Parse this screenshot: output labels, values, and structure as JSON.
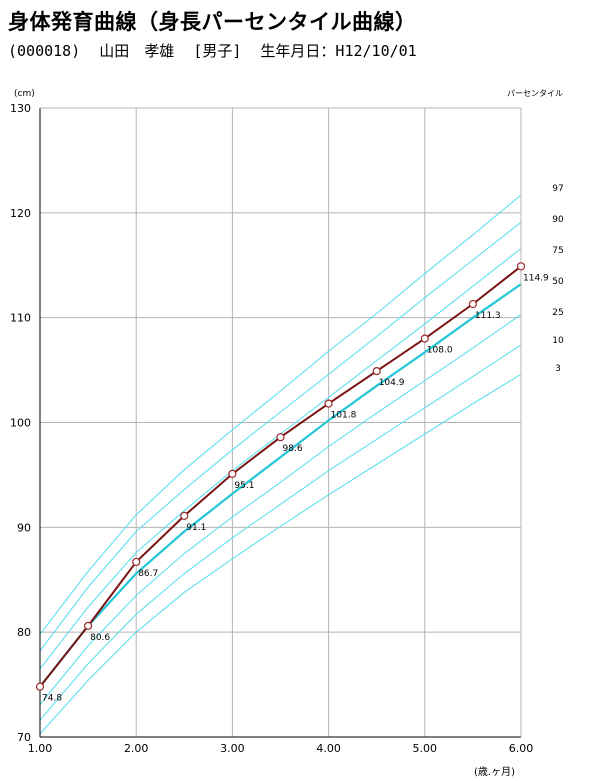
{
  "header": {
    "title": "身体発育曲線（身長パーセンタイル曲線）",
    "patient_id": "(000018)",
    "patient_name": "山田　孝雄",
    "sex": "[男子]",
    "birthdate": "生年月日：H12/10/01"
  },
  "colors": {
    "grid": "#b4b4b4",
    "axis": "#000000",
    "percentile": "#5ee0ec",
    "percentile_50": "#23c6d6",
    "measurement": "#7a1414",
    "marker": "#9a2a2a"
  },
  "chart_data": {
    "type": "line",
    "title": "",
    "xlabel": "(歳.ヶ月)",
    "ylabel": "(cm)",
    "legend_title": "パーセンタイル",
    "xlim": [
      1,
      6
    ],
    "ylim": [
      70,
      130
    ],
    "x_ticks": [
      1,
      2,
      3,
      4,
      5,
      6
    ],
    "x_tick_labels": [
      "1.00",
      "2.00",
      "3.00",
      "4.00",
      "5.00",
      "6.00"
    ],
    "y_ticks": [
      70,
      80,
      90,
      100,
      110,
      120,
      130
    ],
    "y_tick_labels": [
      "70",
      "80",
      "90",
      "100",
      "110",
      "120",
      "130"
    ],
    "grid": true,
    "percentile_x": [
      1,
      1.5,
      2,
      2.5,
      3,
      3.5,
      4,
      4.5,
      5,
      5.5,
      6
    ],
    "percentiles": [
      {
        "name": "97",
        "values": [
          79.8,
          85.8,
          91.2,
          95.5,
          99.3,
          103.0,
          106.8,
          110.4,
          114.2,
          117.9,
          121.7
        ]
      },
      {
        "name": "90",
        "values": [
          78.2,
          84.3,
          89.6,
          93.6,
          97.4,
          101.0,
          104.6,
          108.2,
          111.9,
          115.5,
          119.1
        ]
      },
      {
        "name": "75",
        "values": [
          76.5,
          82.4,
          87.6,
          91.6,
          95.4,
          98.9,
          102.4,
          105.9,
          109.4,
          113.0,
          116.6
        ]
      },
      {
        "name": "50",
        "values": [
          74.8,
          80.6,
          85.6,
          89.6,
          93.2,
          96.7,
          100.2,
          103.5,
          106.7,
          110.0,
          113.2
        ]
      },
      {
        "name": "25",
        "values": [
          73.1,
          78.7,
          83.5,
          87.5,
          91.0,
          94.3,
          97.7,
          100.9,
          104.0,
          107.1,
          110.3
        ]
      },
      {
        "name": "10",
        "values": [
          71.6,
          77.0,
          81.7,
          85.6,
          89.0,
          92.2,
          95.4,
          98.4,
          101.4,
          104.4,
          107.4
        ]
      },
      {
        "name": "3",
        "values": [
          70.3,
          75.4,
          80.0,
          83.8,
          87.0,
          90.1,
          93.1,
          96.0,
          98.9,
          101.8,
          104.6
        ]
      }
    ],
    "series": [
      {
        "x": [
          1,
          1.5,
          2,
          2.5,
          3,
          3.5,
          4,
          4.5,
          5,
          5.5,
          6
        ],
        "values": [
          74.8,
          80.6,
          86.7,
          91.1,
          95.1,
          98.6,
          101.8,
          104.9,
          108.0,
          111.3,
          114.9
        ],
        "labels": [
          "74.8",
          "80.6",
          "86.7",
          "91.1",
          "95.1",
          "98.6",
          "101.8",
          "104.9",
          "108.0",
          "111.3",
          "114.9"
        ]
      }
    ]
  }
}
